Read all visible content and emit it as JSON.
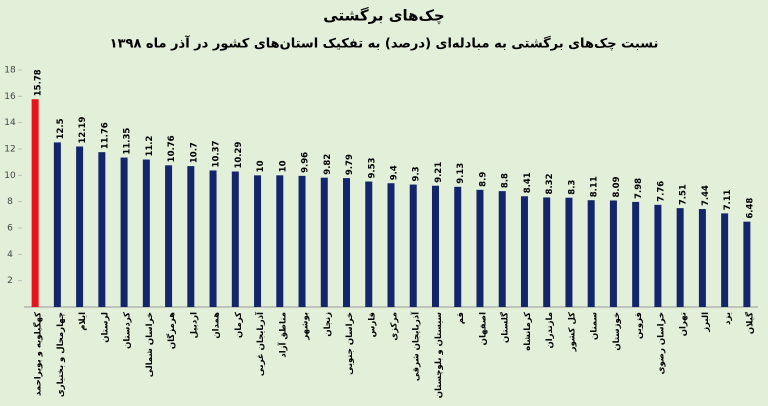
{
  "chart_data": {
    "type": "bar",
    "title": "چک‌های برگشتی",
    "subtitle": "نسبت چک‌های برگشتی به مبادله‌ای (درصد) به تفکیک استان‌های کشور در آذر ماه ۱۳۹۸",
    "categories": [
      "کهگیلویه و بویراحمد",
      "چهارمحال و بختیاری",
      "ایلام",
      "لرستان",
      "کردستان",
      "خراسان شمالی",
      "هرمزگان",
      "اردبیل",
      "همدان",
      "کرمان",
      "آذربایجان غربی",
      "مناطق آزاد",
      "بوشهر",
      "زنجان",
      "خراسان جنوبی",
      "فارس",
      "مرکزی",
      "آذربایجان شرقی",
      "سیستان و بلوچستان",
      "قم",
      "اصفهان",
      "گلستان",
      "کرمانشاه",
      "مازندران",
      "کل کشور",
      "سمنان",
      "خوزستان",
      "قزوین",
      "خراسان رضوی",
      "تهران",
      "البرز",
      "یزد",
      "گیلان"
    ],
    "values": [
      15.78,
      12.5,
      12.19,
      11.76,
      11.35,
      11.2,
      10.76,
      10.7,
      10.37,
      10.29,
      10,
      10,
      9.96,
      9.82,
      9.79,
      9.53,
      9.4,
      9.3,
      9.21,
      9.13,
      8.9,
      8.8,
      8.41,
      8.32,
      8.3,
      8.11,
      8.09,
      7.98,
      7.76,
      7.51,
      7.44,
      7.11,
      6.48
    ],
    "colors": [
      "#e8141b",
      "#13266b",
      "#13266b",
      "#13266b",
      "#13266b",
      "#13266b",
      "#13266b",
      "#13266b",
      "#13266b",
      "#13266b",
      "#13266b",
      "#13266b",
      "#13266b",
      "#13266b",
      "#13266b",
      "#13266b",
      "#13266b",
      "#13266b",
      "#13266b",
      "#13266b",
      "#13266b",
      "#13266b",
      "#13266b",
      "#13266b",
      "#13266b",
      "#13266b",
      "#13266b",
      "#13266b",
      "#13266b",
      "#13266b",
      "#13266b",
      "#13266b",
      "#13266b"
    ],
    "ylim": [
      0,
      18
    ],
    "yticks": [
      2,
      4,
      6,
      8,
      10,
      12,
      14,
      16,
      18
    ],
    "grid": false
  }
}
